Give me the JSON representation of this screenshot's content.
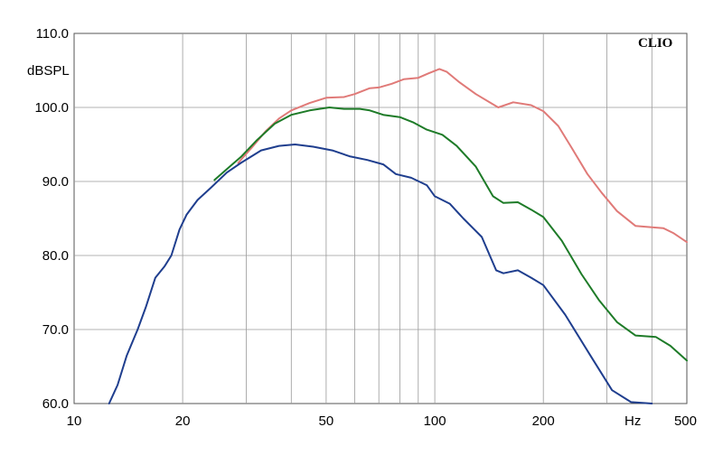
{
  "chart_data": {
    "type": "line",
    "brand": "CLIO",
    "xlabel": "Hz",
    "ylabel": "dBSPL",
    "x_scale": "log",
    "xlim": [
      10,
      500
    ],
    "ylim": [
      60,
      110
    ],
    "grid": true,
    "x_ticks": [
      {
        "value": 10,
        "label": "10"
      },
      {
        "value": 20,
        "label": "20"
      },
      {
        "value": 50,
        "label": "50"
      },
      {
        "value": 100,
        "label": "100"
      },
      {
        "value": 200,
        "label": "200"
      },
      {
        "value": 500,
        "label": "500"
      }
    ],
    "y_ticks": [
      {
        "value": 60,
        "label": "60.0"
      },
      {
        "value": 70,
        "label": "70.0"
      },
      {
        "value": 80,
        "label": "80.0"
      },
      {
        "value": 90,
        "label": "90.0"
      },
      {
        "value": 100,
        "label": "100.0"
      },
      {
        "value": 110,
        "label": "110.0"
      }
    ],
    "series": [
      {
        "color": "#e07a78",
        "points": [
          [
            28.5,
            92.5
          ],
          [
            31,
            94.5
          ],
          [
            34,
            96.8
          ],
          [
            37,
            98.5
          ],
          [
            40,
            99.6
          ],
          [
            45,
            100.6
          ],
          [
            50,
            101.3
          ],
          [
            56,
            101.4
          ],
          [
            60,
            101.8
          ],
          [
            66,
            102.6
          ],
          [
            70,
            102.7
          ],
          [
            76,
            103.2
          ],
          [
            82,
            103.8
          ],
          [
            90,
            104.0
          ],
          [
            96,
            104.6
          ],
          [
            103,
            105.2
          ],
          [
            108,
            104.8
          ],
          [
            117,
            103.4
          ],
          [
            130,
            101.8
          ],
          [
            150,
            100.0
          ],
          [
            165,
            100.7
          ],
          [
            185,
            100.3
          ],
          [
            200,
            99.5
          ],
          [
            220,
            97.5
          ],
          [
            240,
            94.5
          ],
          [
            265,
            91.0
          ],
          [
            290,
            88.5
          ],
          [
            320,
            86.0
          ],
          [
            360,
            84.0
          ],
          [
            400,
            83.8
          ],
          [
            430,
            83.7
          ],
          [
            460,
            83.0
          ],
          [
            500,
            81.8
          ]
        ]
      },
      {
        "color": "#1e7b28",
        "points": [
          [
            24.5,
            90.2
          ],
          [
            27,
            92.0
          ],
          [
            29,
            93.3
          ],
          [
            32,
            95.5
          ],
          [
            36,
            97.8
          ],
          [
            40,
            99.0
          ],
          [
            45,
            99.6
          ],
          [
            51,
            100.0
          ],
          [
            56,
            99.8
          ],
          [
            62,
            99.8
          ],
          [
            66,
            99.6
          ],
          [
            72,
            99.0
          ],
          [
            80,
            98.7
          ],
          [
            87,
            98.0
          ],
          [
            95,
            97.0
          ],
          [
            105,
            96.3
          ],
          [
            115,
            94.8
          ],
          [
            130,
            92.0
          ],
          [
            145,
            88.0
          ],
          [
            155,
            87.1
          ],
          [
            170,
            87.2
          ],
          [
            185,
            86.2
          ],
          [
            200,
            85.2
          ],
          [
            225,
            82.0
          ],
          [
            255,
            77.5
          ],
          [
            285,
            74.0
          ],
          [
            320,
            71.0
          ],
          [
            360,
            69.2
          ],
          [
            410,
            69.0
          ],
          [
            450,
            67.8
          ],
          [
            500,
            65.8
          ]
        ]
      },
      {
        "color": "#1f3e8e",
        "points": [
          [
            12.5,
            60.0
          ],
          [
            13.2,
            62.5
          ],
          [
            14.0,
            66.5
          ],
          [
            15.0,
            70.0
          ],
          [
            15.8,
            73.0
          ],
          [
            16.8,
            77.0
          ],
          [
            17.8,
            78.5
          ],
          [
            18.6,
            80.0
          ],
          [
            19.6,
            83.5
          ],
          [
            20.5,
            85.5
          ],
          [
            22.0,
            87.5
          ],
          [
            24.0,
            89.2
          ],
          [
            26.5,
            91.2
          ],
          [
            29.0,
            92.5
          ],
          [
            33.0,
            94.2
          ],
          [
            37.0,
            94.8
          ],
          [
            41.0,
            95.0
          ],
          [
            46.0,
            94.7
          ],
          [
            52.0,
            94.2
          ],
          [
            58.0,
            93.4
          ],
          [
            65.0,
            92.9
          ],
          [
            72.0,
            92.3
          ],
          [
            78.0,
            91.0
          ],
          [
            86.0,
            90.5
          ],
          [
            95.0,
            89.5
          ],
          [
            100.0,
            88.0
          ],
          [
            110.0,
            87.0
          ],
          [
            120.0,
            85.0
          ],
          [
            135.0,
            82.5
          ],
          [
            148.0,
            78.0
          ],
          [
            155.0,
            77.6
          ],
          [
            170.0,
            78.0
          ],
          [
            185.0,
            77.0
          ],
          [
            200.0,
            76.0
          ],
          [
            230.0,
            72.0
          ],
          [
            270.0,
            66.5
          ],
          [
            310.0,
            61.8
          ],
          [
            350.0,
            60.2
          ],
          [
            400.0,
            60.0
          ]
        ]
      }
    ]
  }
}
